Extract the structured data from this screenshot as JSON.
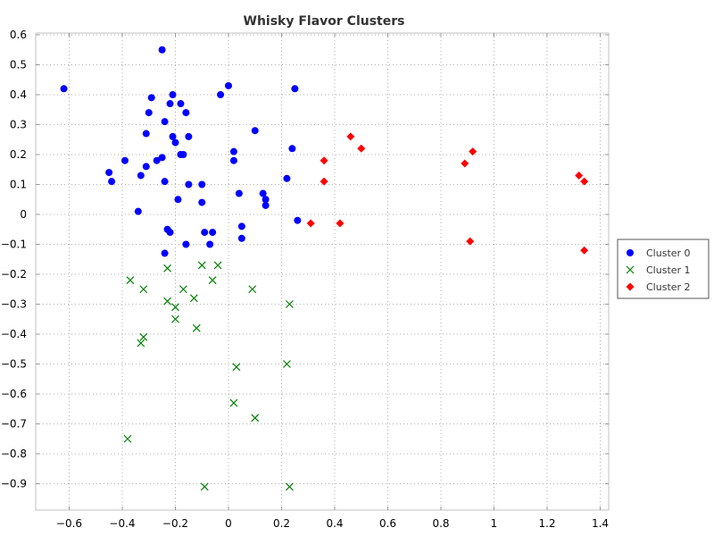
{
  "chart_data": {
    "type": "scatter",
    "title": "Whisky Flavor Clusters",
    "xlabel": "",
    "ylabel": "",
    "xlim": [
      -0.7,
      1.4
    ],
    "ylim": [
      -0.97,
      0.62
    ],
    "xticks": [
      -0.6,
      -0.4,
      -0.2,
      0,
      0.2,
      0.4,
      0.6,
      0.8,
      1,
      1.2,
      1.4
    ],
    "xtick_labels": [
      "−0.6",
      "−0.4",
      "−0.2",
      "0",
      "0.2",
      "0.4",
      "0.6",
      "0.8",
      "1",
      "1.2",
      "1.4"
    ],
    "yticks": [
      0.6,
      0.5,
      0.4,
      0.3,
      0.2,
      0.1,
      0,
      -0.1,
      -0.2,
      -0.3,
      -0.4,
      -0.5,
      -0.6,
      -0.7,
      -0.8,
      -0.9
    ],
    "ytick_labels": [
      "0.6",
      "0.5",
      "0.4",
      "0.3",
      "0.2",
      "0.1",
      "0",
      "−0.1",
      "−0.2",
      "−0.3",
      "−0.4",
      "−0.5",
      "−0.6",
      "−0.7",
      "−0.8",
      "−0.9"
    ],
    "grid": true,
    "legend_position": "right",
    "series": [
      {
        "name": "Cluster 0",
        "color": "#0000ff",
        "marker": "circle",
        "points": [
          [
            -0.62,
            0.42
          ],
          [
            -0.25,
            0.55
          ],
          [
            -0.21,
            0.4
          ],
          [
            -0.29,
            0.39
          ],
          [
            -0.18,
            0.37
          ],
          [
            -0.22,
            0.37
          ],
          [
            -0.3,
            0.34
          ],
          [
            -0.16,
            0.34
          ],
          [
            -0.24,
            0.31
          ],
          [
            -0.31,
            0.27
          ],
          [
            -0.21,
            0.26
          ],
          [
            -0.15,
            0.26
          ],
          [
            -0.2,
            0.24
          ],
          [
            -0.18,
            0.2
          ],
          [
            -0.17,
            0.2
          ],
          [
            -0.25,
            0.19
          ],
          [
            -0.39,
            0.18
          ],
          [
            -0.27,
            0.18
          ],
          [
            -0.31,
            0.16
          ],
          [
            -0.45,
            0.14
          ],
          [
            -0.33,
            0.13
          ],
          [
            -0.44,
            0.11
          ],
          [
            -0.24,
            0.11
          ],
          [
            -0.15,
            0.1
          ],
          [
            -0.1,
            0.1
          ],
          [
            -0.19,
            0.05
          ],
          [
            -0.1,
            0.04
          ],
          [
            -0.34,
            0.01
          ],
          [
            -0.23,
            -0.05
          ],
          [
            -0.22,
            -0.06
          ],
          [
            -0.09,
            -0.06
          ],
          [
            -0.06,
            -0.06
          ],
          [
            -0.16,
            -0.1
          ],
          [
            -0.07,
            -0.1
          ],
          [
            -0.24,
            -0.13
          ],
          [
            0.0,
            0.43
          ],
          [
            -0.03,
            0.4
          ],
          [
            0.25,
            0.42
          ],
          [
            0.1,
            0.28
          ],
          [
            0.02,
            0.21
          ],
          [
            0.02,
            0.18
          ],
          [
            0.24,
            0.22
          ],
          [
            0.22,
            0.12
          ],
          [
            0.04,
            0.07
          ],
          [
            0.13,
            0.07
          ],
          [
            0.14,
            0.05
          ],
          [
            0.14,
            0.03
          ],
          [
            0.26,
            -0.02
          ],
          [
            0.05,
            -0.04
          ],
          [
            0.05,
            -0.08
          ]
        ]
      },
      {
        "name": "Cluster 1",
        "color": "#008000",
        "marker": "x",
        "points": [
          [
            -0.1,
            -0.17
          ],
          [
            -0.04,
            -0.17
          ],
          [
            -0.23,
            -0.18
          ],
          [
            -0.37,
            -0.22
          ],
          [
            -0.06,
            -0.22
          ],
          [
            -0.32,
            -0.25
          ],
          [
            -0.17,
            -0.25
          ],
          [
            0.09,
            -0.25
          ],
          [
            -0.23,
            -0.29
          ],
          [
            -0.13,
            -0.28
          ],
          [
            -0.2,
            -0.31
          ],
          [
            0.23,
            -0.3
          ],
          [
            -0.2,
            -0.35
          ],
          [
            -0.12,
            -0.38
          ],
          [
            -0.32,
            -0.41
          ],
          [
            -0.33,
            -0.43
          ],
          [
            0.22,
            -0.5
          ],
          [
            0.03,
            -0.51
          ],
          [
            0.02,
            -0.63
          ],
          [
            0.1,
            -0.68
          ],
          [
            -0.38,
            -0.75
          ],
          [
            -0.09,
            -0.91
          ],
          [
            0.23,
            -0.91
          ]
        ]
      },
      {
        "name": "Cluster 2",
        "color": "#ff0000",
        "marker": "diamond",
        "points": [
          [
            0.46,
            0.26
          ],
          [
            0.5,
            0.22
          ],
          [
            0.36,
            0.18
          ],
          [
            0.36,
            0.11
          ],
          [
            0.42,
            -0.03
          ],
          [
            0.31,
            -0.03
          ],
          [
            0.89,
            0.17
          ],
          [
            0.92,
            0.21
          ],
          [
            0.91,
            -0.09
          ],
          [
            1.32,
            0.13
          ],
          [
            1.34,
            0.11
          ],
          [
            1.34,
            -0.12
          ]
        ]
      }
    ]
  }
}
